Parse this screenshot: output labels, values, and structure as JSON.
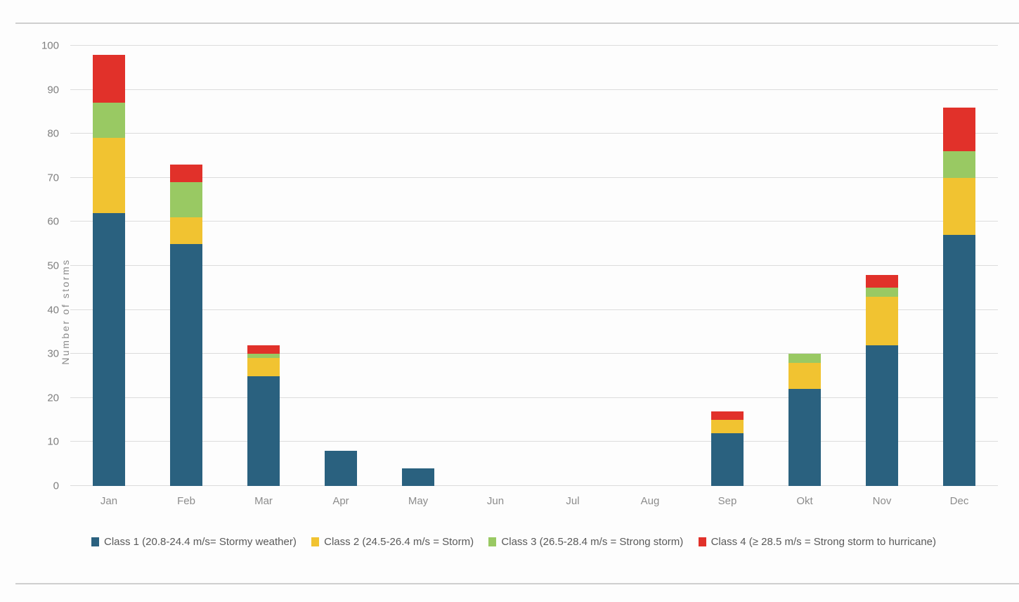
{
  "page": {
    "background_color": "#fdfdfd",
    "frame_line_color": "#cfcfcf",
    "gridline_color": "#dcdcdc",
    "axis_text_color": "#7f7f7f",
    "legend_text_color": "#595959"
  },
  "chart_data": {
    "type": "bar",
    "stacked": true,
    "title": "",
    "xlabel": "",
    "ylabel": "Number of storms",
    "ylim": [
      0,
      100
    ],
    "yticks": [
      0,
      10,
      20,
      30,
      40,
      50,
      60,
      70,
      80,
      90,
      100
    ],
    "grid": true,
    "legend_position": "bottom",
    "categories": [
      "Jan",
      "Feb",
      "Mar",
      "Apr",
      "May",
      "Jun",
      "Jul",
      "Aug",
      "Sep",
      "Okt",
      "Nov",
      "Dec"
    ],
    "series": [
      {
        "name": "Class 1 (20.8-24.4 m/s= Stormy weather)",
        "color": "#2A617F",
        "values": [
          62,
          55,
          25,
          8,
          4,
          0,
          0,
          0,
          12,
          22,
          32,
          57
        ]
      },
      {
        "name": "Class 2 (24.5-26.4 m/s = Storm)",
        "color": "#F1C331",
        "values": [
          17,
          6,
          4,
          0,
          0,
          0,
          0,
          0,
          3,
          6,
          11,
          13
        ]
      },
      {
        "name": "Class 3 (26.5-28.4 m/s = Strong storm)",
        "color": "#99C963",
        "values": [
          8,
          8,
          1,
          0,
          0,
          0,
          0,
          0,
          0,
          2,
          2,
          6
        ]
      },
      {
        "name": "Class 4 (≥ 28.5 m/s = Strong storm to hurricane)",
        "color": "#E1312A",
        "values": [
          11,
          4,
          2,
          0,
          0,
          0,
          0,
          0,
          2,
          0,
          3,
          10
        ]
      }
    ],
    "monthly_totals": [
      98,
      73,
      32,
      8,
      4,
      0,
      0,
      0,
      17,
      30,
      48,
      86
    ]
  }
}
